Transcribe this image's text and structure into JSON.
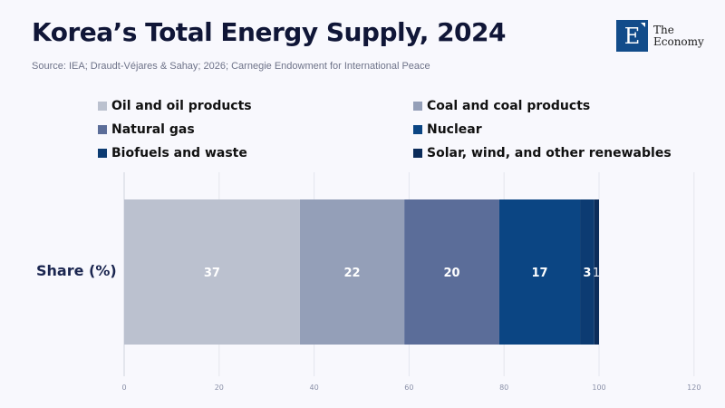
{
  "header": {
    "title": "Korea’s Total Energy Supply, 2024",
    "subtitle": "Source: IEA; Draudt-Véjares & Sahay; 2026; Carnegie Endowment for International Peace"
  },
  "logo": {
    "letter": "E",
    "line1": "The",
    "line2": "Economy",
    "color": "#124c8a"
  },
  "chart_data": {
    "type": "bar",
    "orientation": "horizontal",
    "stacked": true,
    "title": "Korea’s Total Energy Supply, 2024",
    "categories": [
      "Share (%)"
    ],
    "xlabel": "",
    "ylabel": "",
    "xlim": [
      0,
      120
    ],
    "xticks": [
      0,
      20,
      40,
      60,
      80,
      100,
      120
    ],
    "grid": true,
    "legend_position": "top",
    "series": [
      {
        "name": "Oil and oil products",
        "values": [
          37
        ],
        "color": "#bbc1cf",
        "label": "37"
      },
      {
        "name": "Coal and coal products",
        "values": [
          22
        ],
        "color": "#949fb8",
        "label": "22"
      },
      {
        "name": "Natural gas",
        "values": [
          20
        ],
        "color": "#5b6d99",
        "label": "20"
      },
      {
        "name": "Nuclear",
        "values": [
          17
        ],
        "color": "#0b4583",
        "label": "17"
      },
      {
        "name": "Biofuels and waste",
        "values": [
          3
        ],
        "color": "#0c3b72",
        "label": "3"
      },
      {
        "name": "Solar, wind, and other renewables",
        "values": [
          1
        ],
        "color": "#0b2c5a",
        "label": "1"
      }
    ]
  }
}
